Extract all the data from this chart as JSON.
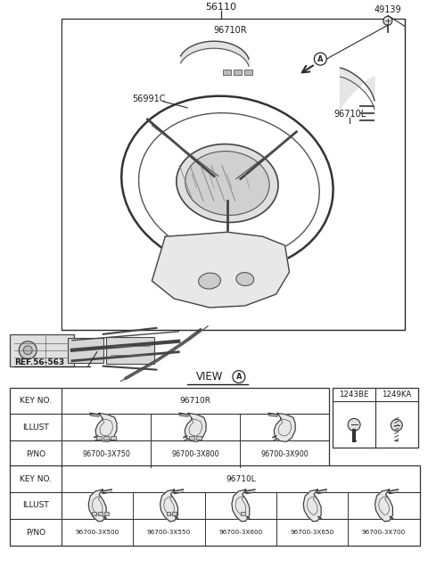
{
  "bg_color": "#ffffff",
  "title_label": "56110",
  "label_96710R": "96710R",
  "label_96710L": "96710L",
  "label_56991C": "56991C",
  "label_49139": "49139",
  "label_ref": "REF.56-563",
  "table1_pnos": [
    "96700-3X750",
    "96700-3X800",
    "96700-3X900"
  ],
  "table2_pnos": [
    "96700-3X500",
    "96700-3X550",
    "96700-3X600",
    "96700-3X650",
    "96700-3X700"
  ],
  "small_table_labels": [
    "1243BE",
    "1249KA"
  ],
  "lc": "#2a2a2a",
  "tlc": "#333333",
  "tc": "#1a1a1a",
  "fs_label": 7,
  "fs_table": 6.5,
  "fs_pno": 5.8
}
